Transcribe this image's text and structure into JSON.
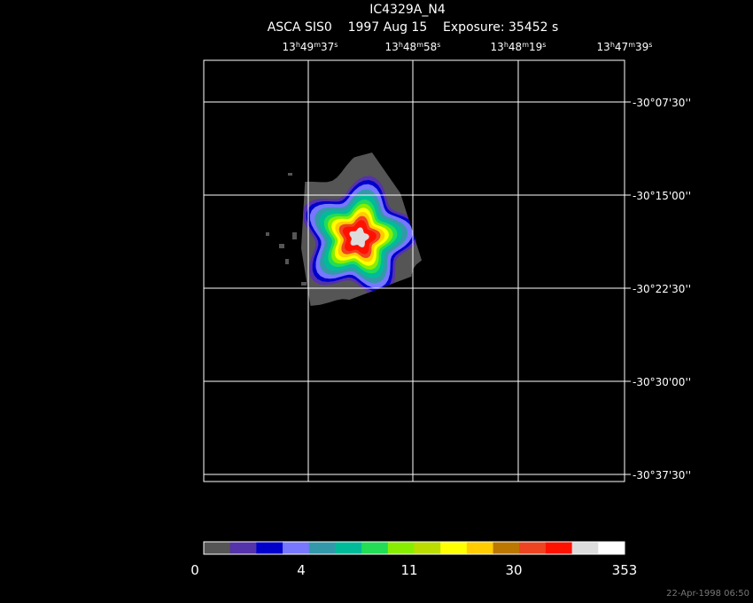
{
  "header": {
    "title": "IC4329A_N4",
    "subtitle": "ASCA SIS0    1997 Aug 15    Exposure: 35452 s"
  },
  "ra_labels": [
    [
      "13",
      "h",
      "49",
      "m",
      "37",
      "s"
    ],
    [
      "13",
      "h",
      "48",
      "m",
      "58",
      "s"
    ],
    [
      "13",
      "h",
      "48",
      "m",
      "19",
      "s"
    ],
    [
      "13",
      "h",
      "47",
      "m",
      "39",
      "s"
    ]
  ],
  "dec_labels": [
    "-30°07'30''",
    "-30°15'00''",
    "-30°22'30''",
    "-30°30'00''",
    "-30°37'30''"
  ],
  "colorbar": {
    "colors": [
      "#555555",
      "#5533aa",
      "#0000cc",
      "#7777ff",
      "#3399aa",
      "#00bb99",
      "#22dd55",
      "#88ee00",
      "#bbdd00",
      "#ffff00",
      "#ffcc00",
      "#bb7700",
      "#ee4422",
      "#ff1100",
      "#dddddd",
      "#ffffff"
    ],
    "labels": [
      "0",
      "4",
      "11",
      "30",
      "353"
    ]
  },
  "timestamp": "22-Apr-1998 06:50"
}
